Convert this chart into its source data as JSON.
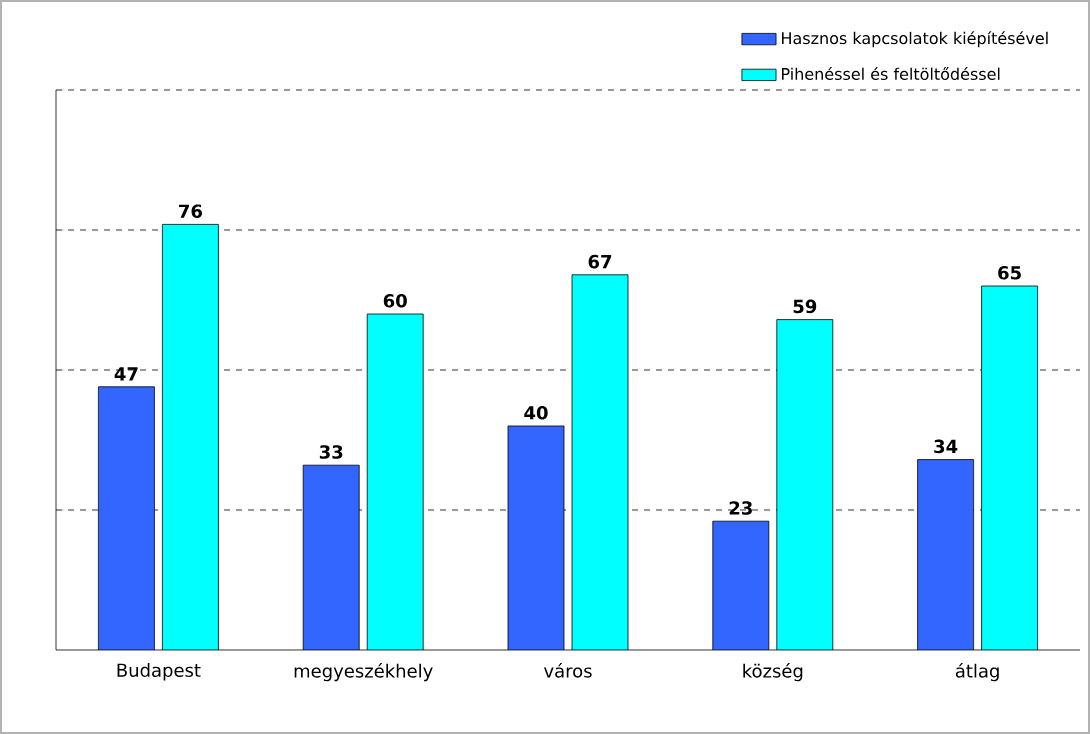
{
  "chart_data": {
    "type": "bar",
    "categories": [
      "Budapest",
      "megyeszékhely",
      "város",
      "község",
      "átlag"
    ],
    "series": [
      {
        "name": "Hasznos kapcsolatok kiépítésével",
        "color": "#3366ff",
        "values": [
          47,
          33,
          40,
          23,
          34
        ]
      },
      {
        "name": "Pihenéssel és feltöltődéssel",
        "color": "#00ffff",
        "values": [
          76,
          60,
          67,
          59,
          65
        ]
      }
    ],
    "ylim": [
      0,
      100
    ],
    "yticks": [
      {
        "value": 25,
        "label": null
      },
      {
        "value": 50,
        "label": null
      },
      {
        "value": 75,
        "label": null
      },
      {
        "value": 100,
        "label": null
      }
    ],
    "tick_labels": "x",
    "grid": "y",
    "legend": "top right",
    "data_labels": true
  }
}
